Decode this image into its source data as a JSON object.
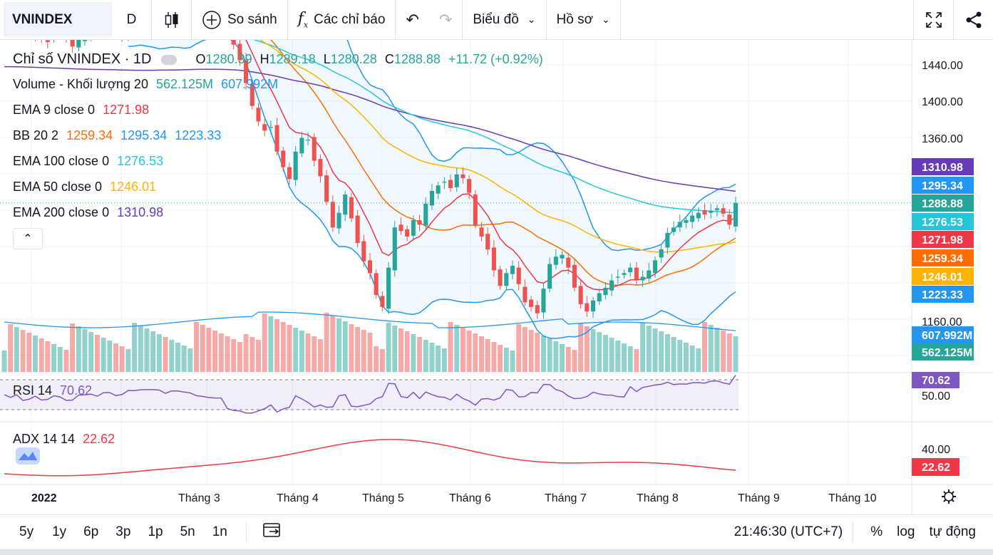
{
  "toolbar": {
    "symbol": "VNINDEX",
    "interval": "D",
    "compare": "So sánh",
    "indicators": "Các chỉ báo",
    "chart_type": "Biểu đồ",
    "profile": "Hồ sơ"
  },
  "legend": {
    "title": "Chỉ số VNINDEX · 1D",
    "o_label": "O",
    "o": "1280.39",
    "h_label": "H",
    "h": "1289.18",
    "l_label": "L",
    "l": "1280.28",
    "c_label": "C",
    "c": "1288.88",
    "change": "+11.72 (+0.92%)",
    "volume_label": "Volume - Khối lượng 20",
    "volume_v1": "562.125M",
    "volume_v2": "607.992M",
    "ema9_label": "EMA 9 close 0",
    "ema9": "1271.98",
    "bb_label": "BB 20 2",
    "bb_mid": "1259.34",
    "bb_up": "1295.34",
    "bb_low": "1223.33",
    "ema100_label": "EMA 100 close 0",
    "ema100": "1276.53",
    "ema50_label": "EMA 50 close 0",
    "ema50": "1246.01",
    "ema200_label": "EMA 200 close 0",
    "ema200": "1310.98",
    "rsi_label": "RSI 14",
    "rsi": "70.62",
    "adx_label": "ADX 14 14",
    "adx": "22.62"
  },
  "price_axis": [
    "1440.00",
    "1400.00",
    "1360.00",
    "1160.00"
  ],
  "rsi_axis": [
    "50.00"
  ],
  "adx_axis": [
    "40.00"
  ],
  "price_tags": [
    {
      "label": "1310.98",
      "color": "#673ab7"
    },
    {
      "label": "1295.34",
      "color": "#2196f3"
    },
    {
      "label": "1288.88",
      "color": "#26a69a"
    },
    {
      "label": "1276.53",
      "color": "#26c6da"
    },
    {
      "label": "1271.98",
      "color": "#f23645"
    },
    {
      "label": "1259.34",
      "color": "#ff6d00"
    },
    {
      "label": "1246.01",
      "color": "#ffb300"
    },
    {
      "label": "1223.33",
      "color": "#2196f3"
    },
    {
      "label": "607.992M",
      "color": "#2196f3"
    },
    {
      "label": "562.125M",
      "color": "#26a69a"
    }
  ],
  "rsi_tag": {
    "label": "70.62",
    "color": "#7e57c2"
  },
  "adx_tag": {
    "label": "22.62",
    "color": "#f23645"
  },
  "time_axis": [
    "2022",
    "Tháng 3",
    "Tháng 4",
    "Tháng 5",
    "Tháng 6",
    "Tháng 7",
    "Tháng 8",
    "Tháng 9",
    "Tháng 10"
  ],
  "bottom": {
    "ranges": [
      "5y",
      "1y",
      "6p",
      "3p",
      "1p",
      "5n",
      "1n"
    ],
    "clock": "21:46:30 (UTC+7)",
    "percent": "%",
    "log": "log",
    "auto": "tự động"
  },
  "colors": {
    "up": "#26a69a",
    "down": "#ef5350",
    "ema9": "#f23645",
    "bb_basis": "#ff6d00",
    "bb_band": "#2196f3",
    "ema100": "#26c6da",
    "ema50": "#ffb300",
    "ema200": "#673ab7",
    "rsi": "#7e57c2",
    "adx": "#f23645",
    "volume_ma": "#2196f3"
  },
  "chart_data": {
    "type": "candlestick",
    "timeframe": "1D",
    "price_ylim": [
      1120,
      1460
    ],
    "close_series": [
      1498,
      1490,
      1495,
      1480,
      1472,
      1478,
      1470,
      1465,
      1475,
      1480,
      1470,
      1460,
      1468,
      1475,
      1482,
      1478,
      1485,
      1490,
      1480,
      1472,
      1478,
      1482,
      1488,
      1494,
      1500,
      1505,
      1498,
      1502,
      1508,
      1512,
      1515,
      1510,
      1505,
      1498,
      1492,
      1488,
      1478,
      1462,
      1445,
      1420,
      1395,
      1378,
      1368,
      1372,
      1345,
      1328,
      1315,
      1345,
      1360,
      1358,
      1335,
      1318,
      1290,
      1262,
      1278,
      1298,
      1272,
      1245,
      1225,
      1212,
      1188,
      1175,
      1218,
      1262,
      1258,
      1252,
      1270,
      1265,
      1288,
      1302,
      1308,
      1312,
      1305,
      1320,
      1316,
      1300,
      1265,
      1252,
      1238,
      1215,
      1198,
      1212,
      1220,
      1200,
      1180,
      1175,
      1168,
      1195,
      1222,
      1230,
      1232,
      1218,
      1196,
      1178,
      1170,
      1182,
      1190,
      1196,
      1204,
      1208,
      1212,
      1218,
      1205,
      1208,
      1215,
      1226,
      1238,
      1256,
      1262,
      1268,
      1270,
      1275,
      1278,
      1276,
      1280,
      1283,
      1277,
      1265,
      1288.88
    ],
    "last": {
      "open": 1280.39,
      "high": 1289.18,
      "low": 1280.28,
      "close": 1288.88,
      "change": 11.72,
      "change_pct": 0.92
    },
    "indicators": {
      "EMA9": 1271.98,
      "BB_basis": 1259.34,
      "BB_upper": 1295.34,
      "BB_lower": 1223.33,
      "EMA100": 1276.53,
      "EMA50": 1246.01,
      "EMA200": 1310.98,
      "RSI14": 70.62,
      "ADX14": 22.62,
      "Volume": "562.125M",
      "Volume_MA20": "607.992M"
    }
  }
}
